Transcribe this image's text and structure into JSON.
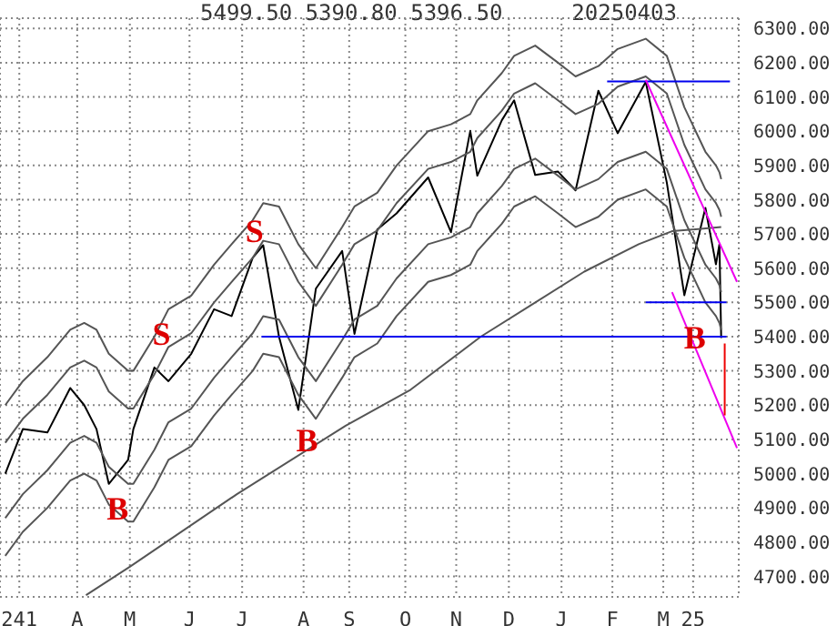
{
  "chart_data": {
    "type": "line",
    "x": [
      "2024-02-20",
      "2024-03-01",
      "2024-03-15",
      "2024-03-28",
      "2024-04-05",
      "2024-04-12",
      "2024-04-19",
      "2024-04-30",
      "2024-05-03",
      "2024-05-15",
      "2024-05-23",
      "2024-06-05",
      "2024-06-18",
      "2024-06-28",
      "2024-07-10",
      "2024-07-16",
      "2024-07-25",
      "2024-08-05",
      "2024-08-15",
      "2024-08-30",
      "2024-09-06",
      "2024-09-19",
      "2024-09-30",
      "2024-10-18",
      "2024-10-31",
      "2024-11-11",
      "2024-11-15",
      "2024-11-29",
      "2024-12-06",
      "2024-12-18",
      "2024-12-31",
      "2025-01-10",
      "2025-01-23",
      "2025-02-03",
      "2025-02-19",
      "2025-03-03",
      "2025-03-13",
      "2025-03-25",
      "2025-03-31",
      "2025-04-02",
      "2025-04-03"
    ],
    "series": [
      {
        "color": "#000000",
        "values": [
          5000,
          5130,
          5120,
          5250,
          5200,
          5130,
          4970,
          5040,
          5130,
          5310,
          5270,
          5350,
          5480,
          5460,
          5630,
          5667,
          5400,
          5186,
          5540,
          5650,
          5408,
          5713,
          5760,
          5865,
          5705,
          6001,
          5870,
          6032,
          6090,
          5872,
          5882,
          5827,
          6118,
          5994,
          6144,
          5850,
          5521,
          5776,
          5611,
          5670,
          5396
        ]
      },
      {
        "color": "#555555",
        "values": [
          5200,
          5270,
          5340,
          5420,
          5440,
          5420,
          5350,
          5300,
          5300,
          5400,
          5480,
          5520,
          5610,
          5670,
          5740,
          5790,
          5780,
          5670,
          5600,
          5720,
          5780,
          5820,
          5900,
          6000,
          6020,
          6050,
          6090,
          6170,
          6220,
          6250,
          6200,
          6160,
          6190,
          6240,
          6270,
          6220,
          6070,
          5940,
          5900,
          5880,
          5860
        ]
      },
      {
        "color": "#555555",
        "values": [
          5090,
          5160,
          5230,
          5310,
          5330,
          5310,
          5240,
          5190,
          5190,
          5290,
          5370,
          5410,
          5500,
          5560,
          5630,
          5680,
          5670,
          5560,
          5490,
          5610,
          5670,
          5710,
          5790,
          5890,
          5910,
          5940,
          5980,
          6060,
          6110,
          6140,
          6090,
          6050,
          6080,
          6130,
          6160,
          6110,
          5960,
          5830,
          5790,
          5770,
          5750
        ]
      },
      {
        "color": "#555555",
        "values": [
          4870,
          4940,
          5010,
          5090,
          5110,
          5090,
          5020,
          4970,
          4970,
          5070,
          5150,
          5190,
          5280,
          5340,
          5410,
          5460,
          5450,
          5340,
          5270,
          5390,
          5450,
          5490,
          5570,
          5670,
          5690,
          5720,
          5760,
          5840,
          5890,
          5920,
          5870,
          5830,
          5860,
          5910,
          5940,
          5890,
          5740,
          5610,
          5570,
          5550,
          5530
        ]
      },
      {
        "color": "#555555",
        "values": [
          4760,
          4830,
          4900,
          4980,
          5000,
          4980,
          4910,
          4860,
          4860,
          4960,
          5040,
          5080,
          5170,
          5230,
          5300,
          5350,
          5340,
          5230,
          5160,
          5280,
          5340,
          5380,
          5460,
          5560,
          5580,
          5610,
          5650,
          5730,
          5780,
          5810,
          5760,
          5720,
          5750,
          5800,
          5830,
          5780,
          5630,
          5500,
          5460,
          5440,
          5420
        ]
      },
      {
        "color": "#555555",
        "x": [
          "2024-04-06",
          "2024-05-01",
          "2024-07-01",
          "2024-09-01",
          "2024-10-08",
          "2024-11-17",
          "2024-12-15",
          "2025-01-15",
          "2025-02-15",
          "2025-03-06",
          "2025-04-03"
        ],
        "values": [
          4645,
          4728,
          4940,
          5140,
          5245,
          5400,
          5490,
          5590,
          5670,
          5708,
          5720
        ]
      },
      {
        "color": "#0000ee",
        "x": [
          "2024-07-15",
          "2025-04-06"
        ],
        "values": [
          5400,
          5400
        ]
      },
      {
        "color": "#0000ee",
        "x": [
          "2025-02-19",
          "2025-04-06"
        ],
        "values": [
          5500,
          5500
        ]
      },
      {
        "color": "#0000ee",
        "x": [
          "2025-01-28",
          "2025-04-08"
        ],
        "values": [
          6145,
          6145
        ]
      },
      {
        "color": "#ee00ee",
        "x": [
          "2025-02-19",
          "2025-04-12"
        ],
        "values": [
          6150,
          5560
        ]
      },
      {
        "color": "#ee00ee",
        "x": [
          "2025-03-06",
          "2025-04-12"
        ],
        "values": [
          5530,
          5075
        ]
      },
      {
        "color": "#ee0000",
        "x": [
          "2025-04-05",
          "2025-04-05"
        ],
        "values": [
          5380,
          5170
        ]
      }
    ],
    "xlim": [
      "2024-02-17",
      "2025-04-13"
    ],
    "xticks": [
      {
        "value": "2024-02-28",
        "label": "241"
      },
      {
        "value": "2024-04-01",
        "label": "A"
      },
      {
        "value": "2024-05-01",
        "label": "M"
      },
      {
        "value": "2024-06-04",
        "label": "J"
      },
      {
        "value": "2024-07-04",
        "label": "J"
      },
      {
        "value": "2024-08-08",
        "label": "A"
      },
      {
        "value": "2024-09-03",
        "label": "S"
      },
      {
        "value": "2024-10-05",
        "label": "O"
      },
      {
        "value": "2024-11-03",
        "label": "N"
      },
      {
        "value": "2024-12-03",
        "label": "D"
      },
      {
        "value": "2025-01-02",
        "label": "J"
      },
      {
        "value": "2025-01-31",
        "label": "F"
      },
      {
        "value": "2025-03-01",
        "label": "M"
      },
      {
        "value": "2025-03-18",
        "label": "25"
      }
    ],
    "ylim": [
      4640,
      6330
    ],
    "yticks": [
      {
        "value": 4700,
        "label": "4700.00"
      },
      {
        "value": 4800,
        "label": "4800.00"
      },
      {
        "value": 4900,
        "label": "4900.00"
      },
      {
        "value": 5000,
        "label": "5000.00"
      },
      {
        "value": 5100,
        "label": "5100.00"
      },
      {
        "value": 5200,
        "label": "5200.00"
      },
      {
        "value": 5300,
        "label": "5300.00"
      },
      {
        "value": 5400,
        "label": "5400.00"
      },
      {
        "value": 5500,
        "label": "5500.00"
      },
      {
        "value": 5600,
        "label": "5600.00"
      },
      {
        "value": 5700,
        "label": "5700.00"
      },
      {
        "value": 5800,
        "label": "5800.00"
      },
      {
        "value": 5900,
        "label": "5900.00"
      },
      {
        "value": 6000,
        "label": "6000.00"
      },
      {
        "value": 6100,
        "label": "6100.00"
      },
      {
        "value": 6200,
        "label": "6200.00"
      },
      {
        "value": 6300,
        "label": "6300.00"
      }
    ],
    "grid": true,
    "annotations": [
      "5499.50 5390.80 5396.50",
      "20250403",
      {
        "text": "S",
        "x": "2024-07-11",
        "y": 5710
      },
      {
        "text": "S",
        "x": "2024-05-19",
        "y": 5410
      },
      {
        "text": "B",
        "x": "2024-04-24",
        "y": 4900
      },
      {
        "text": "B",
        "x": "2024-08-10",
        "y": 5100
      },
      {
        "text": "B",
        "x": "2025-03-19",
        "y": 5400
      }
    ]
  }
}
